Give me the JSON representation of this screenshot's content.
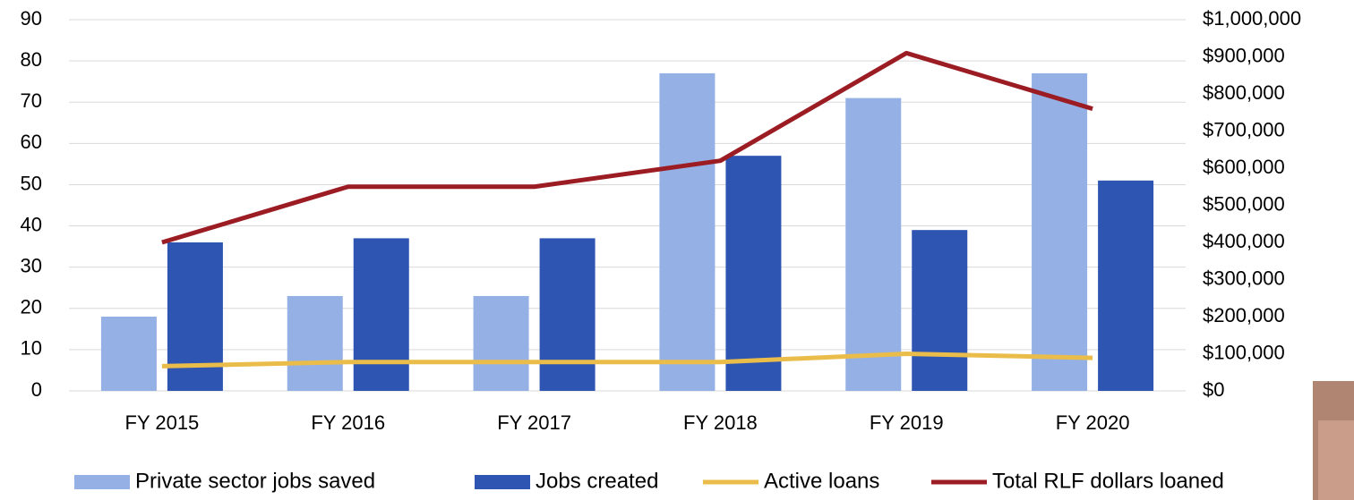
{
  "chart_data": {
    "type": "bar",
    "categories": [
      "FY 2015",
      "FY 2016",
      "FY 2017",
      "FY 2018",
      "FY 2019",
      "FY 2020"
    ],
    "series": [
      {
        "name": "Private sector jobs saved",
        "type": "bar",
        "color": "#95b0e4",
        "values": [
          18,
          23,
          23,
          77,
          71,
          77
        ]
      },
      {
        "name": "Jobs created",
        "type": "bar",
        "color": "#2e55b1",
        "values": [
          36,
          37,
          37,
          57,
          39,
          51
        ]
      },
      {
        "name": "Active loans",
        "type": "line",
        "color": "#eabd4a",
        "values": [
          6,
          7,
          7,
          7,
          9,
          8
        ]
      },
      {
        "name": "Total RLF dollars loaned",
        "type": "line",
        "axis": "y2",
        "color": "#9b1c23",
        "values": [
          400000,
          550000,
          550000,
          620000,
          910000,
          760000
        ]
      }
    ],
    "ylim": [
      0,
      90
    ],
    "yticks": [
      0,
      10,
      20,
      30,
      40,
      50,
      60,
      70,
      80,
      90
    ],
    "y2lim": [
      0,
      1000000
    ],
    "y2ticks": [
      {
        "value": 0,
        "label": "$0"
      },
      {
        "value": 100000,
        "label": "$100,000"
      },
      {
        "value": 200000,
        "label": "$200,000"
      },
      {
        "value": 300000,
        "label": "$300,000"
      },
      {
        "value": 400000,
        "label": "$400,000"
      },
      {
        "value": 500000,
        "label": "$500,000"
      },
      {
        "value": 600000,
        "label": "$600,000"
      },
      {
        "value": 700000,
        "label": "$700,000"
      },
      {
        "value": 800000,
        "label": "$800,000"
      },
      {
        "value": 900000,
        "label": "$900,000"
      },
      {
        "value": 1000000,
        "label": "$1,000,000"
      }
    ],
    "grid": true,
    "legend": "bottom"
  }
}
